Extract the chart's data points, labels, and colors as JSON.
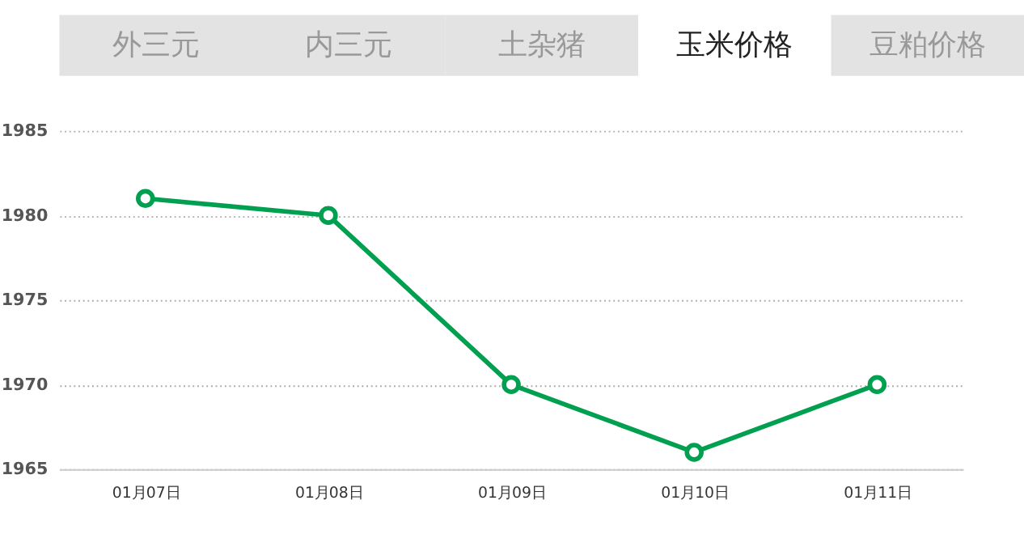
{
  "chart_data": {
    "type": "line",
    "annotations": [
      "外三元",
      "内三元",
      "土杂猪",
      "玉米价格",
      "豆粕价格"
    ],
    "categories": [
      "01月07日",
      "01月08日",
      "01月09日",
      "01月10日",
      "01月11日"
    ],
    "series": [
      {
        "color": "#00a050",
        "values": [
          1981,
          1980,
          1970,
          1966,
          1970
        ]
      }
    ],
    "ylim": [
      1965,
      1985
    ],
    "yticks": [
      1965,
      1970,
      1975,
      1980,
      1985
    ],
    "grid": "y",
    "marker": "circle",
    "line_style": "solid"
  }
}
